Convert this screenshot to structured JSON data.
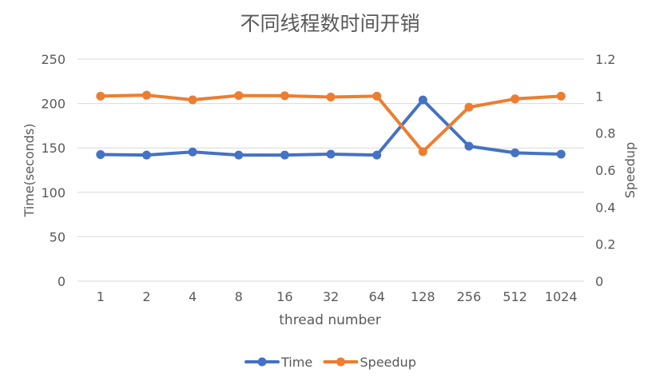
{
  "chart_data": {
    "type": "line",
    "title": "不同线程数时间开销",
    "xlabel": "thread number",
    "ylabel_left": "Time(seconds)",
    "ylabel_right": "Speedup",
    "categories": [
      "1",
      "2",
      "4",
      "8",
      "16",
      "32",
      "64",
      "128",
      "256",
      "512",
      "1024"
    ],
    "ylim_left": [
      0,
      250
    ],
    "yticks_left": [
      "0",
      "50",
      "100",
      "150",
      "200",
      "250"
    ],
    "ylim_right": [
      0,
      1.2
    ],
    "yticks_right": [
      "0",
      "0.2",
      "0.4",
      "0.6",
      "0.8",
      "1",
      "1.2"
    ],
    "grid": true,
    "legend_position": "bottom",
    "series": [
      {
        "name": "Time",
        "axis": "left",
        "color": "#4472C4",
        "values": [
          142.5,
          142,
          145.5,
          142,
          142,
          143,
          142,
          204,
          152,
          144.5,
          143
        ]
      },
      {
        "name": "Speedup",
        "axis": "right",
        "color": "#ED7D31",
        "values": [
          1.0,
          1.005,
          0.98,
          1.003,
          1.002,
          0.995,
          1.0,
          0.7,
          0.94,
          0.985,
          1.0
        ]
      }
    ]
  }
}
